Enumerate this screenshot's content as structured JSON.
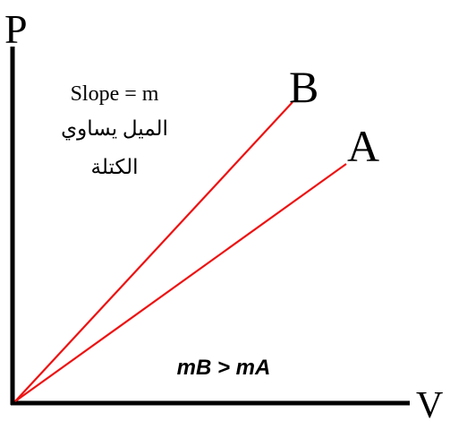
{
  "axes": {
    "y_label": "P",
    "x_label": "V"
  },
  "lines": [
    {
      "name": "B",
      "label": "B",
      "color": "#ee1111"
    },
    {
      "name": "A",
      "label": "A",
      "color": "#ee1111"
    }
  ],
  "annotation": {
    "slope_en": "Slope = m",
    "slope_ar_line1": "الميل يساوي",
    "slope_ar_line2": "الكتلة",
    "comparison": "mB > mA"
  },
  "colors": {
    "axis": "#000000",
    "line": "#ee1111",
    "text": "#000000"
  }
}
